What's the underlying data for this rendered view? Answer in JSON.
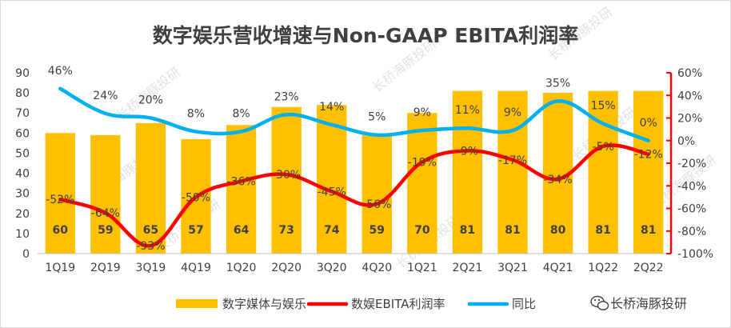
{
  "chart_data": {
    "type": "bar",
    "title": "数字娱乐营收增速与Non-GAAP EBITA利润率",
    "categories": [
      "1Q19",
      "2Q19",
      "3Q19",
      "4Q19",
      "1Q20",
      "2Q20",
      "3Q20",
      "4Q20",
      "1Q21",
      "2Q21",
      "3Q21",
      "4Q21",
      "1Q22",
      "2Q22"
    ],
    "series": [
      {
        "name": "数字媒体与娱乐",
        "type": "bar",
        "axis": "left",
        "values": [
          60,
          59,
          65,
          57,
          64,
          73,
          74,
          59,
          70,
          81,
          81,
          80,
          81,
          81
        ],
        "labels": [
          "60",
          "59",
          "65",
          "57",
          "64",
          "73",
          "74",
          "59",
          "70",
          "81",
          "81",
          "80",
          "81",
          "81"
        ]
      },
      {
        "name": "数娱EBITA利润率",
        "type": "line",
        "axis": "right",
        "values": [
          -52,
          -64,
          -93,
          -50,
          -36,
          -30,
          -45,
          -56,
          -19,
          -9,
          -17,
          -34,
          -5,
          -12
        ],
        "labels": [
          "-52%",
          "-64%",
          "-93%",
          "-50%",
          "-36%",
          "-30%",
          "-45%",
          "-56%",
          "-19%",
          "-9%",
          "-17%",
          "-34%",
          "-5%",
          "-12%"
        ]
      },
      {
        "name": "同比",
        "type": "line",
        "axis": "right",
        "values": [
          46,
          24,
          20,
          8,
          8,
          23,
          14,
          5,
          9,
          11,
          9,
          35,
          15,
          0
        ],
        "labels": [
          "46%",
          "24%",
          "20%",
          "8%",
          "8%",
          "23%",
          "14%",
          "5%",
          "9%",
          "11%",
          "9%",
          "35%",
          "15%",
          "0%"
        ]
      }
    ],
    "ylim_left": [
      0,
      90
    ],
    "yticks_left": [
      "0",
      "10",
      "20",
      "30",
      "40",
      "50",
      "60",
      "70",
      "80",
      "90"
    ],
    "ylim_right": [
      -100,
      60
    ],
    "yticks_right": [
      "-100%",
      "-80%",
      "-60%",
      "-40%",
      "-20%",
      "0%",
      "20%",
      "40%",
      "60%"
    ],
    "colors": {
      "bar": "#ffc000",
      "margin": "#ff0000",
      "yoy": "#00b0f0",
      "axis_right": "#ff0000"
    },
    "legend_position": "bottom"
  },
  "watermark": "长桥海豚投研",
  "brand": "长桥海豚投研"
}
